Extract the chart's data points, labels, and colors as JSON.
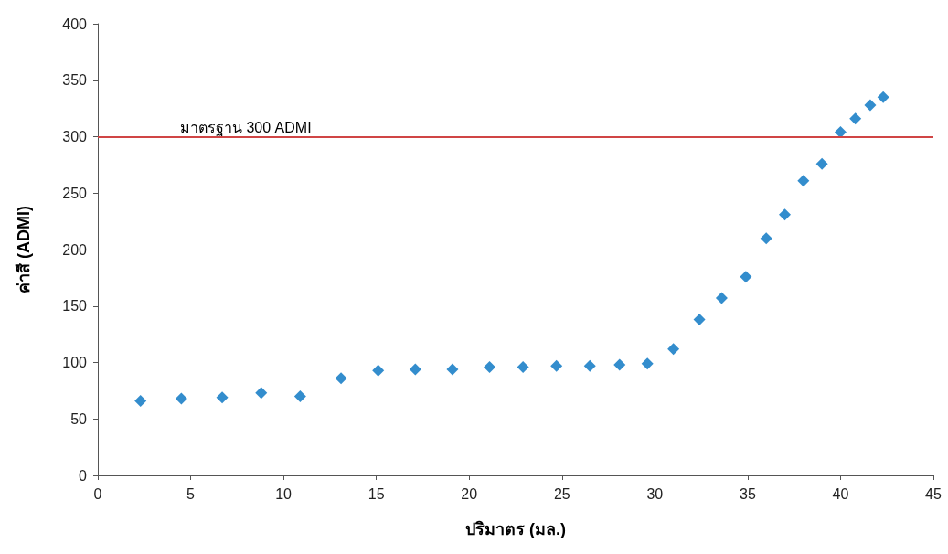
{
  "chart_data": {
    "type": "scatter",
    "xlabel": "ปริมาตร (มล.)",
    "ylabel": "ค่าสี (ADMI)",
    "x": [
      2.3,
      4.5,
      6.7,
      8.8,
      10.9,
      13.1,
      15.1,
      17.1,
      19.1,
      21.1,
      22.9,
      24.7,
      26.5,
      28.1,
      29.6,
      31.0,
      32.4,
      33.6,
      34.9,
      36.0,
      37.0,
      38.0,
      39.0,
      40.0,
      40.8,
      41.6,
      42.3
    ],
    "series": [
      {
        "color": "#0070c0",
        "values": [
          66,
          68,
          69,
          73,
          70,
          86,
          93,
          94,
          94,
          96,
          96,
          97,
          97,
          98,
          99,
          112,
          138,
          157,
          176,
          210,
          231,
          261,
          276,
          304,
          316,
          328,
          335
        ]
      }
    ],
    "marker": "diamond",
    "grid": false,
    "xlim": [
      0,
      45
    ],
    "xticks": [
      0,
      5,
      10,
      15,
      20,
      25,
      30,
      35,
      40,
      45
    ],
    "ylim": [
      0,
      400
    ],
    "yticks": [
      0,
      50,
      100,
      150,
      200,
      250,
      300,
      350,
      400
    ],
    "ref_lines": [
      {
        "axis": "y",
        "value": 300,
        "label": "มาตรฐาน 300 ADMI",
        "color": "#d04545"
      }
    ]
  }
}
